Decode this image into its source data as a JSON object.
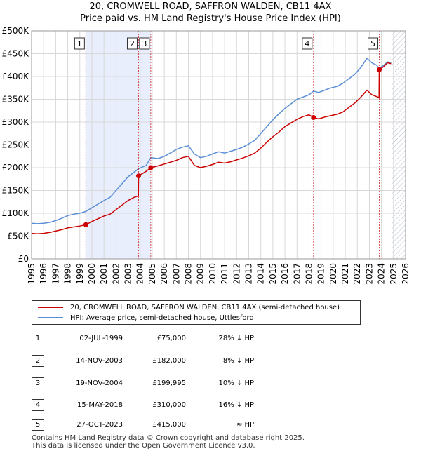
{
  "title_line1": "20, CROMWELL ROAD, SAFFRON WALDEN, CB11 4AX",
  "title_line2": "Price paid vs. HM Land Registry's House Price Index (HPI)",
  "colors": {
    "price_paid": "#cc0000",
    "hpi": "#5b8fd6",
    "shade": "#e8eefb",
    "hatch": "#b0b8cc",
    "grid": "#d8d8d8",
    "marker_line": "#cc0000"
  },
  "legend": {
    "price_paid_label": "20, CROMWELL ROAD, SAFFRON WALDEN, CB11 4AX (semi-detached house)",
    "hpi_label": "HPI: Average price, semi-detached house, Uttlesford"
  },
  "sales": [
    {
      "num": "1",
      "date": "02-JUL-1999",
      "price": "£75,000",
      "hpi": "28% ↓ HPI"
    },
    {
      "num": "2",
      "date": "14-NOV-2003",
      "price": "£182,000",
      "hpi": "8% ↓ HPI"
    },
    {
      "num": "3",
      "date": "19-NOV-2004",
      "price": "£199,995",
      "hpi": "10% ↓ HPI"
    },
    {
      "num": "4",
      "date": "15-MAY-2018",
      "price": "£310,000",
      "hpi": "16% ↓ HPI"
    },
    {
      "num": "5",
      "date": "27-OCT-2023",
      "price": "£415,000",
      "hpi": "≈ HPI"
    }
  ],
  "footer": {
    "line1": "Contains HM Land Registry data © Crown copyright and database right 2025.",
    "line2": "This data is licensed under the Open Government Licence v3.0."
  },
  "chart_data": {
    "type": "line",
    "title": "Price paid vs. HM Land Registry's House Price Index (HPI)",
    "xlabel": "",
    "ylabel": "",
    "xlim": [
      1995,
      2026
    ],
    "ylim": [
      0,
      500000
    ],
    "x_ticks": [
      1995,
      1996,
      1997,
      1998,
      1999,
      2000,
      2001,
      2002,
      2003,
      2004,
      2005,
      2006,
      2007,
      2008,
      2009,
      2010,
      2011,
      2012,
      2013,
      2014,
      2015,
      2016,
      2017,
      2018,
      2019,
      2020,
      2021,
      2022,
      2023,
      2024,
      2025,
      2026
    ],
    "y_ticks": [
      {
        "value": 0,
        "label": "£0"
      },
      {
        "value": 50000,
        "label": "£50K"
      },
      {
        "value": 100000,
        "label": "£100K"
      },
      {
        "value": 150000,
        "label": "£150K"
      },
      {
        "value": 200000,
        "label": "£200K"
      },
      {
        "value": 250000,
        "label": "£250K"
      },
      {
        "value": 300000,
        "label": "£300K"
      },
      {
        "value": 350000,
        "label": "£350K"
      },
      {
        "value": 400000,
        "label": "£400K"
      },
      {
        "value": 450000,
        "label": "£450K"
      },
      {
        "value": 500000,
        "label": "£500K"
      }
    ],
    "shaded_range": [
      1999.5,
      2004.9
    ],
    "hatched_range": [
      2024.9,
      2026
    ],
    "sale_markers": [
      {
        "label": "1",
        "x": 1999.5,
        "y": 75000
      },
      {
        "label": "2",
        "x": 2003.87,
        "y": 182000
      },
      {
        "label": "3",
        "x": 2004.88,
        "y": 199995
      },
      {
        "label": "4",
        "x": 2018.37,
        "y": 310000
      },
      {
        "label": "5",
        "x": 2023.82,
        "y": 415000
      }
    ],
    "series": [
      {
        "name": "HPI: Average price, semi-detached house, Uttlesford",
        "x": [
          1995.0,
          1995.5,
          1996.0,
          1996.5,
          1997.0,
          1997.5,
          1998.0,
          1998.5,
          1999.0,
          1999.5,
          2000.0,
          2000.5,
          2001.0,
          2001.5,
          2002.0,
          2002.5,
          2003.0,
          2003.5,
          2003.87,
          2004.5,
          2004.88,
          2005.5,
          2006.0,
          2006.5,
          2007.0,
          2007.5,
          2008.0,
          2008.5,
          2009.0,
          2009.5,
          2010.0,
          2010.5,
          2011.0,
          2011.5,
          2012.0,
          2012.5,
          2013.0,
          2013.5,
          2014.0,
          2014.5,
          2015.0,
          2015.5,
          2016.0,
          2016.5,
          2017.0,
          2017.5,
          2018.0,
          2018.37,
          2018.8,
          2019.3,
          2019.8,
          2020.3,
          2020.8,
          2021.3,
          2021.8,
          2022.3,
          2022.8,
          2023.2,
          2023.6,
          2023.82,
          2024.2,
          2024.5,
          2024.8
        ],
        "y": [
          78000,
          77000,
          78000,
          80000,
          84000,
          89000,
          95000,
          98000,
          100000,
          104000,
          112000,
          120000,
          128000,
          135000,
          150000,
          165000,
          180000,
          190000,
          198000,
          205000,
          222000,
          220000,
          225000,
          232000,
          240000,
          245000,
          248000,
          230000,
          222000,
          225000,
          230000,
          235000,
          232000,
          236000,
          240000,
          245000,
          252000,
          260000,
          275000,
          290000,
          305000,
          318000,
          330000,
          340000,
          350000,
          355000,
          360000,
          368000,
          365000,
          370000,
          375000,
          378000,
          385000,
          395000,
          405000,
          420000,
          440000,
          430000,
          425000,
          418000,
          425000,
          432000,
          430000
        ]
      },
      {
        "name": "20, CROMWELL ROAD, SAFFRON WALDEN, CB11 4AX (semi-detached house)",
        "x": [
          1995.0,
          1995.5,
          1996.0,
          1996.5,
          1997.0,
          1997.5,
          1998.0,
          1998.5,
          1999.0,
          1999.5,
          2000.0,
          2000.5,
          2001.0,
          2001.5,
          2002.0,
          2002.5,
          2003.0,
          2003.5,
          2003.85,
          2003.87,
          2004.5,
          2004.88,
          2005.5,
          2006.0,
          2006.5,
          2007.0,
          2007.5,
          2008.0,
          2008.5,
          2009.0,
          2009.5,
          2010.0,
          2010.5,
          2011.0,
          2011.5,
          2012.0,
          2012.5,
          2013.0,
          2013.5,
          2014.0,
          2014.5,
          2015.0,
          2015.5,
          2016.0,
          2016.5,
          2017.0,
          2017.5,
          2018.0,
          2018.37,
          2018.8,
          2019.3,
          2019.8,
          2020.3,
          2020.8,
          2021.3,
          2021.8,
          2022.3,
          2022.8,
          2023.2,
          2023.6,
          2023.8,
          2023.82,
          2024.2,
          2024.5,
          2024.8
        ],
        "y": [
          56000,
          55000,
          56000,
          58000,
          61000,
          64000,
          68000,
          70000,
          72000,
          75000,
          82000,
          88000,
          94000,
          98000,
          108000,
          118000,
          128000,
          135000,
          138000,
          182000,
          192000,
          199995,
          204000,
          208000,
          212000,
          216000,
          222000,
          225000,
          205000,
          200000,
          203000,
          207000,
          212000,
          210000,
          213000,
          217000,
          221000,
          226000,
          232000,
          243000,
          256000,
          268000,
          278000,
          290000,
          298000,
          306000,
          312000,
          316000,
          310000,
          307000,
          311000,
          314000,
          317000,
          322000,
          332000,
          342000,
          355000,
          370000,
          360000,
          356000,
          354000,
          415000,
          422000,
          430000,
          428000
        ]
      }
    ]
  }
}
